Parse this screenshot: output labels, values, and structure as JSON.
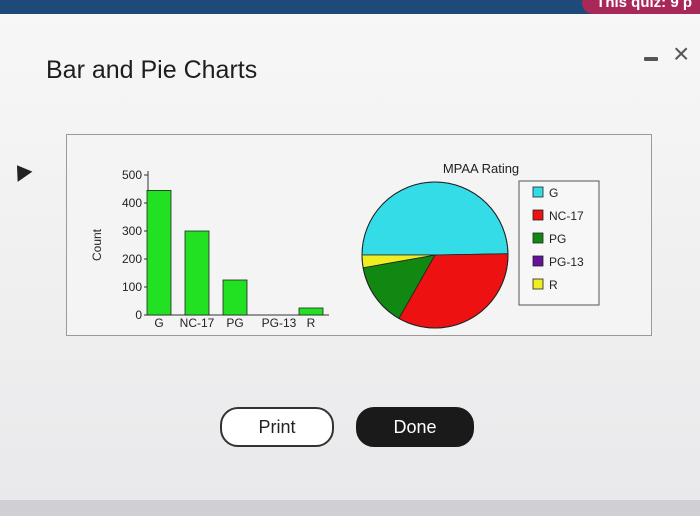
{
  "header": {
    "quiz_label": "This quiz: 9 p"
  },
  "dialog": {
    "title": "Bar and Pie Charts",
    "minimize_icon": "minimize-icon",
    "close_glyph": "×",
    "close_icon": "close-icon"
  },
  "buttons": {
    "print_label": "Print",
    "done_label": "Done"
  },
  "colors": {
    "bar_fill": "#22e022",
    "G": "#33dce6",
    "NC-17": "#ee1111",
    "PG": "#118811",
    "PG-13": "#661199",
    "R": "#eeee22"
  },
  "chart_data": [
    {
      "type": "bar",
      "ylabel": "Count",
      "categories": [
        "G",
        "NC-17",
        "PG",
        "PG-13",
        "R"
      ],
      "values": [
        445,
        300,
        125,
        0,
        25
      ],
      "ylim": [
        0,
        500
      ],
      "yticks": [
        "0",
        "100",
        "200",
        "300",
        "400",
        "500"
      ]
    },
    {
      "type": "pie",
      "title": "MPAA Rating",
      "legend_position": "right",
      "labels": [
        "G",
        "NC-17",
        "PG",
        "PG-13",
        "R"
      ],
      "values": [
        445,
        300,
        125,
        0,
        25
      ]
    }
  ]
}
